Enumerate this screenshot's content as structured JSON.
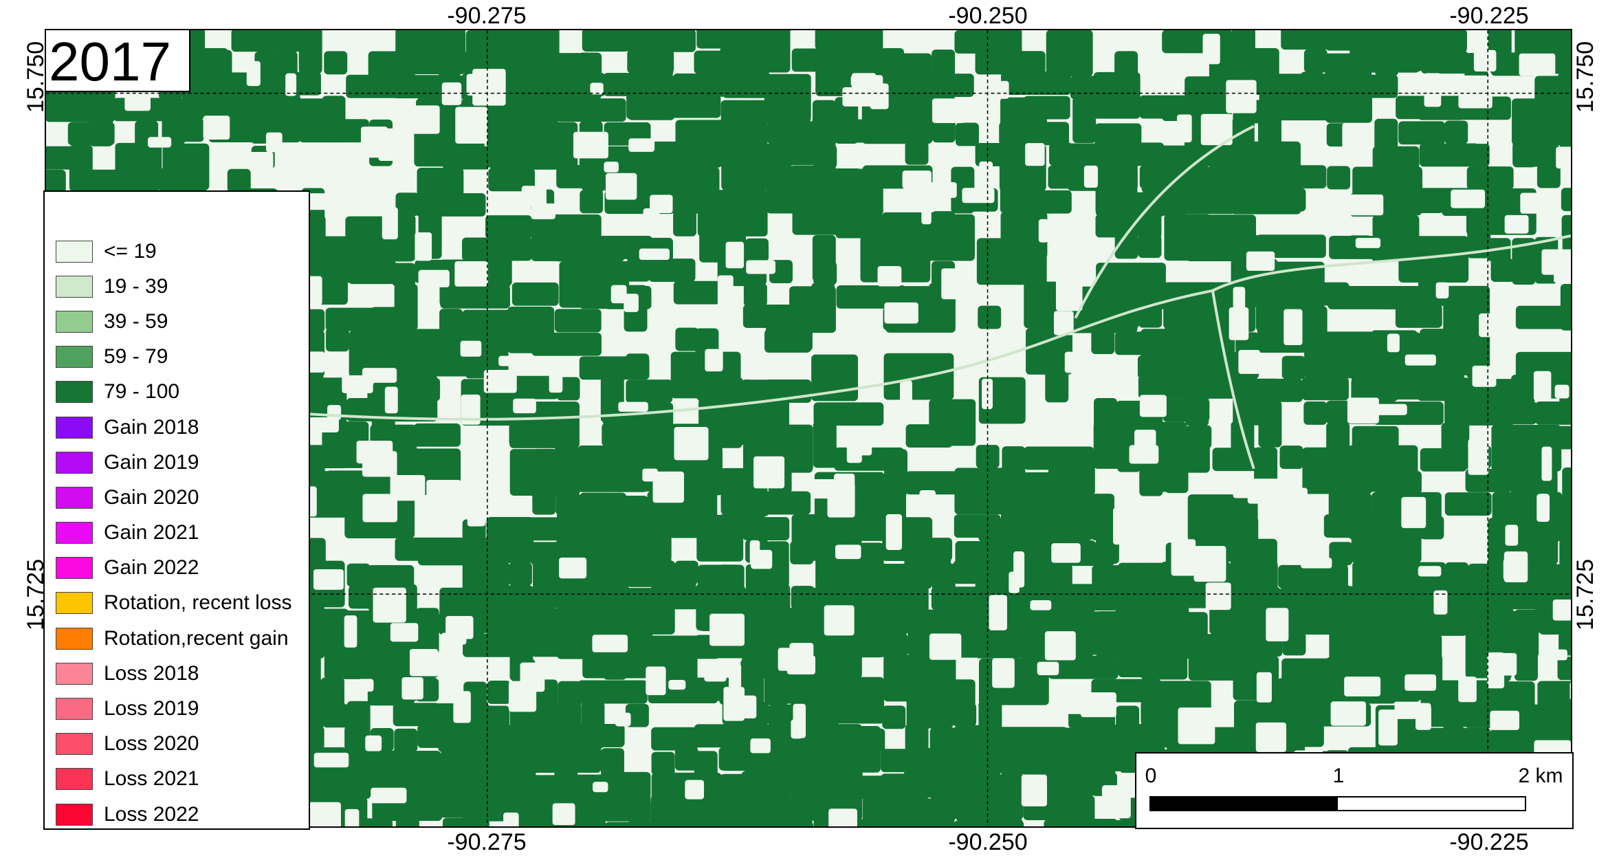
{
  "map": {
    "year_label": "2017",
    "coords": {
      "top": [
        "-90.275",
        "-90.250",
        "-90.225"
      ],
      "bottom": [
        "-90.275",
        "-90.250",
        "-90.225"
      ],
      "left": [
        "15.750",
        "15.725"
      ],
      "right": [
        "15.750",
        "15.725"
      ]
    },
    "colors": {
      "forest": "#137333",
      "background": "#f0f7ef"
    }
  },
  "legend": {
    "items": [
      {
        "label": "<= 19",
        "color": "#eef7ec"
      },
      {
        "label": "19 - 39",
        "color": "#cfe9cb"
      },
      {
        "label": "39 - 59",
        "color": "#93cc8f"
      },
      {
        "label": "59 - 79",
        "color": "#4fa25d"
      },
      {
        "label": "79 - 100",
        "color": "#157532"
      },
      {
        "label": "Gain 2018",
        "color": "#8b0bf5"
      },
      {
        "label": "Gain 2019",
        "color": "#b30bf7"
      },
      {
        "label": "Gain 2020",
        "color": "#d20bf0"
      },
      {
        "label": "Gain 2021",
        "color": "#ea09f5"
      },
      {
        "label": "Gain 2022",
        "color": "#fc08e0"
      },
      {
        "label": "Rotation, recent loss",
        "color": "#fdc400"
      },
      {
        "label": "Rotation,recent gain",
        "color": "#ff7d00"
      },
      {
        "label": "Loss 2018",
        "color": "#fb8596"
      },
      {
        "label": "Loss 2019",
        "color": "#fa6b83"
      },
      {
        "label": "Loss 2020",
        "color": "#fb4f6c"
      },
      {
        "label": "Loss 2021",
        "color": "#fb3356"
      },
      {
        "label": "Loss 2022",
        "color": "#fb0532"
      }
    ]
  },
  "scalebar": {
    "ticks": [
      "0",
      "1",
      "2 km"
    ],
    "filled_fraction": 0.5
  }
}
